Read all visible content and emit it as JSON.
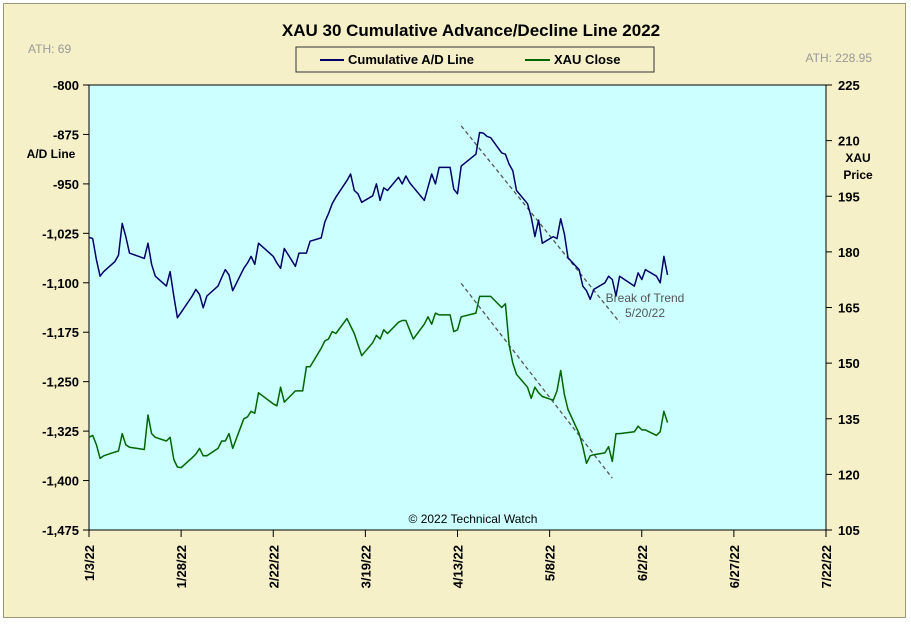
{
  "chart_data": {
    "type": "line",
    "title": "XAU 30 Cumulative Advance/Decline Line 2022",
    "ath_left": "ATH: 69",
    "ath_right": "ATH: 228.95",
    "copyright": "© 2022 Technical Watch",
    "legend_placement": "top-center",
    "legend": [
      {
        "name": "Cumulative A/D Line",
        "color": "#000066"
      },
      {
        "name": "XAU Close",
        "color": "#006600"
      }
    ],
    "y_left": {
      "label": [
        "A/D Line"
      ],
      "min": -1475,
      "max": -800,
      "ticks": [
        -800,
        -875,
        -950,
        -1025,
        -1100,
        -1175,
        -1250,
        -1325,
        -1400,
        -1475
      ],
      "tick_labels": [
        "-800",
        "-875",
        "-950",
        "-1,025",
        "-1,100",
        "-1,175",
        "-1,250",
        "-1,325",
        "-1,400",
        "-1,475"
      ]
    },
    "y_right": {
      "label": [
        "XAU",
        "Price"
      ],
      "min": 105,
      "max": 225,
      "ticks": [
        105,
        120,
        135,
        150,
        165,
        180,
        195,
        210,
        225
      ],
      "tick_labels": [
        "105",
        "120",
        "135",
        "150",
        "165",
        "180",
        "195",
        "210",
        "225"
      ]
    },
    "x_ticks": [
      "1/3/22",
      "1/28/22",
      "2/22/22",
      "3/19/22",
      "4/13/22",
      "5/8/22",
      "6/2/22",
      "6/27/22",
      "7/22/22"
    ],
    "grid": false,
    "plot_background": "#ccffff",
    "series": [
      {
        "name": "Cumulative A/D Line",
        "axis": "left",
        "color": "#000066",
        "points": [
          [
            "2022-01-03",
            -1031
          ],
          [
            "2022-01-04",
            -1033
          ],
          [
            "2022-01-05",
            -1065
          ],
          [
            "2022-01-06",
            -1090
          ],
          [
            "2022-01-07",
            -1083
          ],
          [
            "2022-01-10",
            -1068
          ],
          [
            "2022-01-11",
            -1058
          ],
          [
            "2022-01-12",
            -1010
          ],
          [
            "2022-01-13",
            -1030
          ],
          [
            "2022-01-14",
            -1055
          ],
          [
            "2022-01-18",
            -1063
          ],
          [
            "2022-01-19",
            -1040
          ],
          [
            "2022-01-20",
            -1072
          ],
          [
            "2022-01-21",
            -1090
          ],
          [
            "2022-01-24",
            -1105
          ],
          [
            "2022-01-25",
            -1083
          ],
          [
            "2022-01-26",
            -1120
          ],
          [
            "2022-01-27",
            -1153
          ],
          [
            "2022-01-28",
            -1145
          ],
          [
            "2022-01-31",
            -1120
          ],
          [
            "2022-02-01",
            -1110
          ],
          [
            "2022-02-02",
            -1118
          ],
          [
            "2022-02-03",
            -1138
          ],
          [
            "2022-02-04",
            -1120
          ],
          [
            "2022-02-07",
            -1105
          ],
          [
            "2022-02-08",
            -1092
          ],
          [
            "2022-02-09",
            -1080
          ],
          [
            "2022-02-10",
            -1088
          ],
          [
            "2022-02-11",
            -1112
          ],
          [
            "2022-02-14",
            -1078
          ],
          [
            "2022-02-15",
            -1070
          ],
          [
            "2022-02-16",
            -1060
          ],
          [
            "2022-02-17",
            -1072
          ],
          [
            "2022-02-18",
            -1040
          ],
          [
            "2022-02-22",
            -1060
          ],
          [
            "2022-02-23",
            -1070
          ],
          [
            "2022-02-24",
            -1078
          ],
          [
            "2022-02-25",
            -1048
          ],
          [
            "2022-02-28",
            -1075
          ],
          [
            "2022-03-01",
            -1055
          ],
          [
            "2022-03-02",
            -1055
          ],
          [
            "2022-03-03",
            -1055
          ],
          [
            "2022-03-04",
            -1037
          ],
          [
            "2022-03-07",
            -1032
          ],
          [
            "2022-03-08",
            -1008
          ],
          [
            "2022-03-09",
            -995
          ],
          [
            "2022-03-10",
            -980
          ],
          [
            "2022-03-11",
            -970
          ],
          [
            "2022-03-14",
            -945
          ],
          [
            "2022-03-15",
            -935
          ],
          [
            "2022-03-16",
            -960
          ],
          [
            "2022-03-17",
            -965
          ],
          [
            "2022-03-18",
            -978
          ],
          [
            "2022-03-21",
            -968
          ],
          [
            "2022-03-22",
            -950
          ],
          [
            "2022-03-23",
            -975
          ],
          [
            "2022-03-24",
            -956
          ],
          [
            "2022-03-25",
            -960
          ],
          [
            "2022-03-28",
            -940
          ],
          [
            "2022-03-29",
            -950
          ],
          [
            "2022-03-30",
            -938
          ],
          [
            "2022-03-31",
            -948
          ],
          [
            "2022-04-01",
            -955
          ],
          [
            "2022-04-04",
            -975
          ],
          [
            "2022-04-05",
            -955
          ],
          [
            "2022-04-06",
            -935
          ],
          [
            "2022-04-07",
            -950
          ],
          [
            "2022-04-08",
            -925
          ],
          [
            "2022-04-11",
            -925
          ],
          [
            "2022-04-12",
            -958
          ],
          [
            "2022-04-13",
            -965
          ],
          [
            "2022-04-14",
            -923
          ],
          [
            "2022-04-18",
            -905
          ],
          [
            "2022-04-19",
            -872
          ],
          [
            "2022-04-20",
            -873
          ],
          [
            "2022-04-21",
            -878
          ],
          [
            "2022-04-22",
            -880
          ],
          [
            "2022-04-25",
            -903
          ],
          [
            "2022-04-26",
            -905
          ],
          [
            "2022-04-27",
            -920
          ],
          [
            "2022-04-28",
            -930
          ],
          [
            "2022-04-29",
            -960
          ],
          [
            "2022-05-02",
            -980
          ],
          [
            "2022-05-03",
            -1000
          ],
          [
            "2022-05-04",
            -1030
          ],
          [
            "2022-05-05",
            -1005
          ],
          [
            "2022-05-06",
            -1040
          ],
          [
            "2022-05-09",
            -1030
          ],
          [
            "2022-05-10",
            -1033
          ],
          [
            "2022-05-11",
            -1003
          ],
          [
            "2022-05-12",
            -1026
          ],
          [
            "2022-05-13",
            -1062
          ],
          [
            "2022-05-16",
            -1080
          ],
          [
            "2022-05-17",
            -1105
          ],
          [
            "2022-05-18",
            -1112
          ],
          [
            "2022-05-19",
            -1125
          ],
          [
            "2022-05-20",
            -1110
          ],
          [
            "2022-05-23",
            -1100
          ],
          [
            "2022-05-24",
            -1090
          ],
          [
            "2022-05-25",
            -1095
          ],
          [
            "2022-05-26",
            -1120
          ],
          [
            "2022-05-27",
            -1090
          ],
          [
            "2022-05-31",
            -1105
          ],
          [
            "2022-06-01",
            -1085
          ],
          [
            "2022-06-02",
            -1095
          ],
          [
            "2022-06-03",
            -1080
          ],
          [
            "2022-06-06",
            -1090
          ],
          [
            "2022-06-07",
            -1100
          ],
          [
            "2022-06-08",
            -1060
          ],
          [
            "2022-06-09",
            -1088
          ]
        ]
      },
      {
        "name": "XAU Close",
        "axis": "right",
        "color": "#006600",
        "points": [
          [
            "2022-01-03",
            130.0
          ],
          [
            "2022-01-04",
            130.5
          ],
          [
            "2022-01-05",
            128.0
          ],
          [
            "2022-01-06",
            124.3
          ],
          [
            "2022-01-07",
            125.0
          ],
          [
            "2022-01-10",
            126.0
          ],
          [
            "2022-01-11",
            126.3
          ],
          [
            "2022-01-12",
            131.0
          ],
          [
            "2022-01-13",
            128.0
          ],
          [
            "2022-01-14",
            127.3
          ],
          [
            "2022-01-18",
            126.7
          ],
          [
            "2022-01-19",
            136.0
          ],
          [
            "2022-01-20",
            131.0
          ],
          [
            "2022-01-21",
            130.0
          ],
          [
            "2022-01-24",
            129.0
          ],
          [
            "2022-01-25",
            130.0
          ],
          [
            "2022-01-26",
            124.0
          ],
          [
            "2022-01-27",
            122.0
          ],
          [
            "2022-01-28",
            121.8
          ],
          [
            "2022-01-31",
            124.5
          ],
          [
            "2022-02-01",
            125.5
          ],
          [
            "2022-02-02",
            127.0
          ],
          [
            "2022-02-03",
            125.0
          ],
          [
            "2022-02-04",
            125.0
          ],
          [
            "2022-02-07",
            127.0
          ],
          [
            "2022-02-08",
            129.0
          ],
          [
            "2022-02-09",
            129.0
          ],
          [
            "2022-02-10",
            131.0
          ],
          [
            "2022-02-11",
            127.0
          ],
          [
            "2022-02-14",
            135.0
          ],
          [
            "2022-02-15",
            135.5
          ],
          [
            "2022-02-16",
            137.0
          ],
          [
            "2022-02-17",
            136.5
          ],
          [
            "2022-02-18",
            142.0
          ],
          [
            "2022-02-22",
            139.0
          ],
          [
            "2022-02-23",
            138.5
          ],
          [
            "2022-02-24",
            143.5
          ],
          [
            "2022-02-25",
            139.5
          ],
          [
            "2022-02-28",
            142.5
          ],
          [
            "2022-03-01",
            142.5
          ],
          [
            "2022-03-02",
            142.5
          ],
          [
            "2022-03-03",
            149.0
          ],
          [
            "2022-03-04",
            149.0
          ],
          [
            "2022-03-07",
            154.0
          ],
          [
            "2022-03-08",
            156.0
          ],
          [
            "2022-03-09",
            156.5
          ],
          [
            "2022-03-10",
            158.5
          ],
          [
            "2022-03-11",
            158.0
          ],
          [
            "2022-03-14",
            162.0
          ],
          [
            "2022-03-15",
            160.0
          ],
          [
            "2022-03-16",
            158.0
          ],
          [
            "2022-03-17",
            155.0
          ],
          [
            "2022-03-18",
            152.0
          ],
          [
            "2022-03-21",
            155.5
          ],
          [
            "2022-03-22",
            157.5
          ],
          [
            "2022-03-23",
            156.5
          ],
          [
            "2022-03-24",
            159.0
          ],
          [
            "2022-03-25",
            158.0
          ],
          [
            "2022-03-28",
            161.0
          ],
          [
            "2022-03-29",
            161.5
          ],
          [
            "2022-03-30",
            161.5
          ],
          [
            "2022-03-31",
            159.0
          ],
          [
            "2022-04-01",
            156.5
          ],
          [
            "2022-04-04",
            160.5
          ],
          [
            "2022-04-05",
            162.5
          ],
          [
            "2022-04-06",
            160.5
          ],
          [
            "2022-04-07",
            163.5
          ],
          [
            "2022-04-08",
            163.0
          ],
          [
            "2022-04-11",
            163.0
          ],
          [
            "2022-04-12",
            158.5
          ],
          [
            "2022-04-13",
            159.0
          ],
          [
            "2022-04-14",
            162.5
          ],
          [
            "2022-04-18",
            163.5
          ],
          [
            "2022-04-19",
            168.0
          ],
          [
            "2022-04-20",
            168.0
          ],
          [
            "2022-04-21",
            168.0
          ],
          [
            "2022-04-22",
            168.0
          ],
          [
            "2022-04-25",
            165.0
          ],
          [
            "2022-04-26",
            166.0
          ],
          [
            "2022-04-27",
            155.0
          ],
          [
            "2022-04-28",
            150.0
          ],
          [
            "2022-04-29",
            147.0
          ],
          [
            "2022-05-02",
            143.5
          ],
          [
            "2022-05-03",
            140.5
          ],
          [
            "2022-05-04",
            143.5
          ],
          [
            "2022-05-05",
            142.0
          ],
          [
            "2022-05-06",
            141.0
          ],
          [
            "2022-05-09",
            140.0
          ],
          [
            "2022-05-10",
            142.5
          ],
          [
            "2022-05-11",
            148.0
          ],
          [
            "2022-05-12",
            141.5
          ],
          [
            "2022-05-13",
            137.5
          ],
          [
            "2022-05-16",
            131.0
          ],
          [
            "2022-05-17",
            127.5
          ],
          [
            "2022-05-18",
            123.0
          ],
          [
            "2022-05-19",
            125.0
          ],
          [
            "2022-05-20",
            125.3
          ],
          [
            "2022-05-23",
            125.8
          ],
          [
            "2022-05-24",
            127.5
          ],
          [
            "2022-05-25",
            123.5
          ],
          [
            "2022-05-26",
            131.0
          ],
          [
            "2022-05-27",
            131.0
          ],
          [
            "2022-05-31",
            131.5
          ],
          [
            "2022-06-01",
            133.0
          ],
          [
            "2022-06-02",
            132.0
          ],
          [
            "2022-06-03",
            132.0
          ],
          [
            "2022-06-06",
            130.5
          ],
          [
            "2022-06-07",
            131.5
          ],
          [
            "2022-06-08",
            137.0
          ],
          [
            "2022-06-09",
            134.0
          ]
        ]
      }
    ],
    "trendlines": [
      {
        "axis": "left",
        "from": [
          "2022-04-14",
          -862
        ],
        "to": [
          "2022-05-27",
          -1160
        ]
      },
      {
        "axis": "right",
        "from": [
          "2022-04-14",
          171.5
        ],
        "to": [
          "2022-05-25",
          119.0
        ]
      }
    ],
    "annotation": {
      "lines": [
        "Break of Trend",
        "5/20/22"
      ]
    }
  }
}
